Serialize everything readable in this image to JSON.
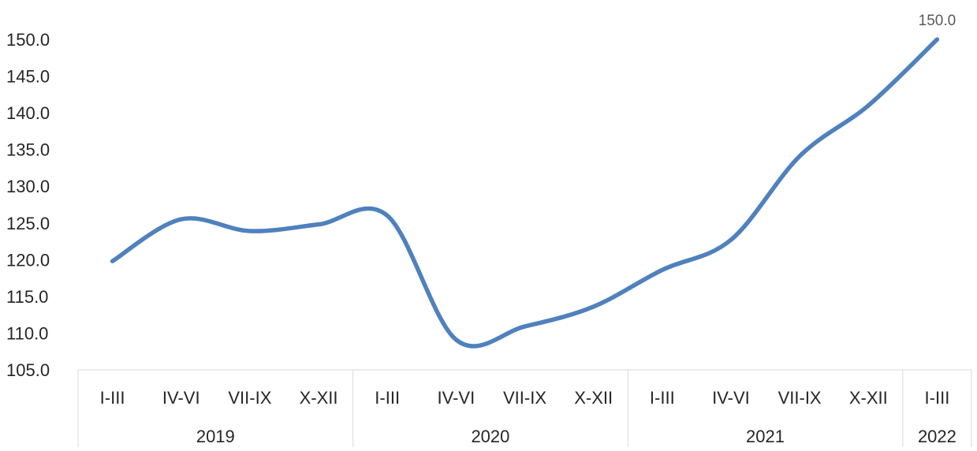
{
  "chart_data": {
    "type": "line",
    "title": "",
    "xlabel": "",
    "ylabel": "",
    "ylim": [
      105,
      150
    ],
    "yticks": [
      "105.0",
      "110.0",
      "115.0",
      "120.0",
      "125.0",
      "130.0",
      "135.0",
      "140.0",
      "145.0",
      "150.0"
    ],
    "groups": [
      {
        "label": "2019",
        "categories": [
          "I-III",
          "IV-VI",
          "VII-IX",
          "X-XII"
        ]
      },
      {
        "label": "2020",
        "categories": [
          "I-III",
          "IV-VI",
          "VII-IX",
          "X-XII"
        ]
      },
      {
        "label": "2021",
        "categories": [
          "I-III",
          "IV-VI",
          "VII-IX",
          "X-XII"
        ]
      },
      {
        "label": "2022",
        "categories": [
          "I-III"
        ]
      }
    ],
    "series": [
      {
        "color": "#4f81bd",
        "values": [
          119.8,
          125.5,
          123.9,
          124.8,
          126.0,
          109.1,
          110.9,
          113.6,
          118.6,
          122.7,
          134.1,
          141.0,
          150.0
        ]
      }
    ],
    "data_labels": [
      {
        "index": 12,
        "text": "150.0"
      }
    ],
    "grid": false,
    "legend": "none"
  }
}
